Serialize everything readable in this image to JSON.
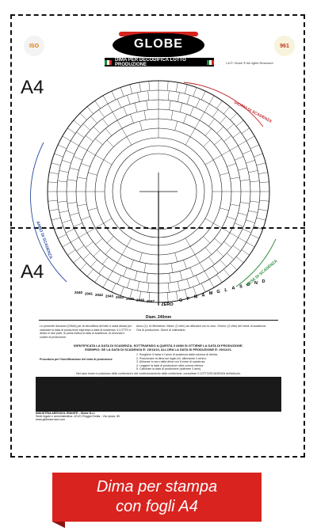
{
  "labels": {
    "a4_top": "A4",
    "a4_bottom": "A4"
  },
  "header": {
    "logo": "GLOBE",
    "subtitle": "DIMA PER DECODIFICA LOTTO PRODUZIONE",
    "rights": "I.A.P. Globe ® All rights Reserved",
    "seal_left": "ISO",
    "seal_right": "961"
  },
  "dial": {
    "zero_label": "ZERO",
    "month_letters": [
      "G",
      "F",
      "M",
      "A",
      "M",
      "G",
      "L",
      "A",
      "S",
      "O",
      "N",
      "D"
    ],
    "years": [
      "2040",
      "2041",
      "2042",
      "2043",
      "2044",
      "2045",
      "2046",
      "2047"
    ],
    "arc_top_red": "GIORNI DI SCADENZA",
    "arc_left_blue": "ANNO DI SCADENZA",
    "arc_right_green": "MESE DI SCADENZA"
  },
  "dimension": {
    "label": "Diam. 240mm"
  },
  "instructions": {
    "left_block": "Le presente istruzioni (DIMA) per la decodifica del lotto è stata ideata per calcolare la data di produzione espressa a data di scadenza. Il LOTTO è diviso in due parti: la prima indica la data di scadenza, la seconda il codice di produzione.",
    "right_block": "Anno (1): di riferimento. Mese: (2 cifre) da utilizzare con lo zero. Giorno: (2 cifre) del mese di scadenza. Ora di produzione. Giorni di calendario.",
    "heading": "IDENTIFICATA LA DATA DI SCADENZA, SOTTRAENDO A QUESTA 3 ANNI SI OTTIENE LA DATA DI PRODUZIONE. ESEMPIO: SE LA DATA DI SCADENZA È: 29/11/24, ALLORA LA DATA DI PRODUZIONE È: 29/11/21.",
    "steps_label": "Procedura per l'identificazione del lotto di produzione",
    "steps": [
      "1. Scegliere il mese e l'anno di scadenza dalla colonna di destra.",
      "2. Posizionare la dima sul foglio A4, allineando il centro.",
      "3. Allineare lo zero della dima con il mese di scadenza.",
      "4. Leggere la data di produzione nella corona interna.",
      "5. Calcolare la data di produzione (sottrarre 3 anni)."
    ],
    "note": "Nel caso fosse in possesso delle confezioni e del confezionamento della confezione, consultare il LOTTO/SCADENZA dell'articolo."
  },
  "footer": {
    "company": "INDUSTRIA AEROSOL RIUNITE - Globe S.r.l.",
    "address": "Sede legale e amministrativa: 42121 Reggio Emilia - Via Lipsia, 85",
    "web": "www.globeaerosol.com"
  },
  "caption": {
    "line1": "Dima per stampa",
    "line2": "con fogli A4"
  }
}
